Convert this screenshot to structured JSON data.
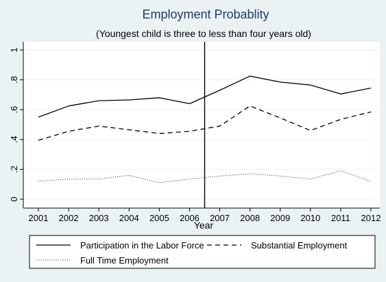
{
  "chart_data": {
    "type": "line",
    "title": "Employment Probablity",
    "subtitle": "(Youngest child is three to less than four years old)",
    "xlabel": "Year",
    "ylabel": "",
    "x": [
      2001,
      2002,
      2003,
      2004,
      2005,
      2006,
      2007,
      2008,
      2009,
      2010,
      2011,
      2012
    ],
    "xlim": [
      2001,
      2012
    ],
    "ylim": [
      0,
      1
    ],
    "yticks": [
      0,
      0.2,
      0.4,
      0.6,
      0.8,
      1
    ],
    "ytick_labels": [
      "0",
      ".2",
      ".4",
      ".6",
      ".8",
      "1"
    ],
    "xtick_labels": [
      "2001",
      "2002",
      "2003",
      "2004",
      "2005",
      "2006",
      "2007",
      "2008",
      "2009",
      "2010",
      "2011",
      "2012"
    ],
    "vline_x": 2006.5,
    "grid": true,
    "legend_position": "bottom",
    "series": [
      {
        "name": "Participation in the Labor Force",
        "style": "solid",
        "values": [
          0.55,
          0.625,
          0.66,
          0.665,
          0.68,
          0.64,
          0.73,
          0.825,
          0.785,
          0.765,
          0.705,
          0.745
        ]
      },
      {
        "name": "Substantial Employment",
        "style": "dashed",
        "values": [
          0.395,
          0.455,
          0.49,
          0.465,
          0.44,
          0.455,
          0.49,
          0.625,
          0.545,
          0.46,
          0.535,
          0.585
        ]
      },
      {
        "name": "Full Time Employment",
        "style": "dotted",
        "values": [
          0.12,
          0.135,
          0.135,
          0.16,
          0.11,
          0.135,
          0.155,
          0.17,
          0.155,
          0.135,
          0.19,
          0.12
        ]
      }
    ],
    "colors": {
      "background": "#eaf2f3",
      "plot": "#ffffff",
      "title": "#1f3b66",
      "grid": "#eaf2f3",
      "line": "#000000"
    }
  }
}
